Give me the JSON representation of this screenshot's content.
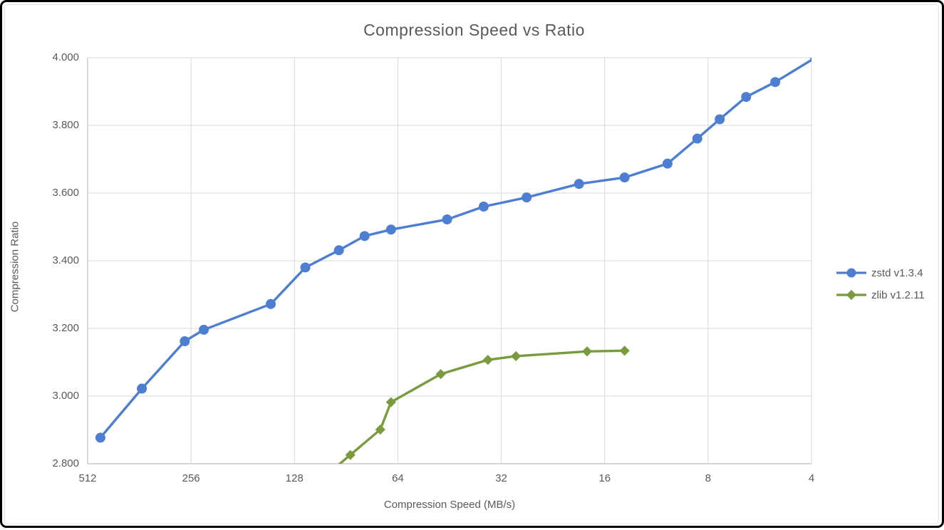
{
  "chart_data": {
    "type": "line",
    "title": "Compression Speed vs Ratio",
    "xlabel": "Compression Speed (MB/s)",
    "ylabel": "Compression Ratio",
    "x_scale": "log2_reversed",
    "xlim": [
      512,
      4
    ],
    "ylim": [
      2.8,
      4.0
    ],
    "x_ticks": [
      "512",
      "256",
      "128",
      "64",
      "32",
      "16",
      "8",
      "4"
    ],
    "y_ticks": [
      "2.800",
      "3.000",
      "3.200",
      "3.400",
      "3.600",
      "3.800",
      "4.000"
    ],
    "grid": true,
    "legend_position": "right",
    "colors": {
      "gridline": "#d9d9d9",
      "axis_line": "#bfbfbf",
      "text": "#595959"
    },
    "series": [
      {
        "name": "zstd v1.3.4",
        "color": "#4d7ed2",
        "marker": "circle",
        "points": [
          [
            470,
            2.877
          ],
          [
            356,
            3.022
          ],
          [
            267,
            3.162
          ],
          [
            235,
            3.196
          ],
          [
            150,
            3.272
          ],
          [
            119,
            3.38
          ],
          [
            95,
            3.431
          ],
          [
            80,
            3.473
          ],
          [
            67,
            3.492
          ],
          [
            46,
            3.522
          ],
          [
            36,
            3.56
          ],
          [
            27,
            3.587
          ],
          [
            19,
            3.627
          ],
          [
            14,
            3.646
          ],
          [
            10.5,
            3.687
          ],
          [
            8.6,
            3.761
          ],
          [
            7.4,
            3.818
          ],
          [
            6.2,
            3.884
          ],
          [
            5.1,
            3.928
          ],
          [
            3.9,
            4.0
          ]
        ]
      },
      {
        "name": "zlib v1.2.11",
        "color": "#7a9a3e",
        "marker": "diamond",
        "points": [
          [
            110,
            2.743
          ],
          [
            88,
            2.826
          ],
          [
            72,
            2.901
          ],
          [
            67,
            2.982
          ],
          [
            48,
            3.065
          ],
          [
            35,
            3.107
          ],
          [
            29,
            3.118
          ],
          [
            18,
            3.132
          ],
          [
            14,
            3.134
          ]
        ]
      }
    ]
  }
}
